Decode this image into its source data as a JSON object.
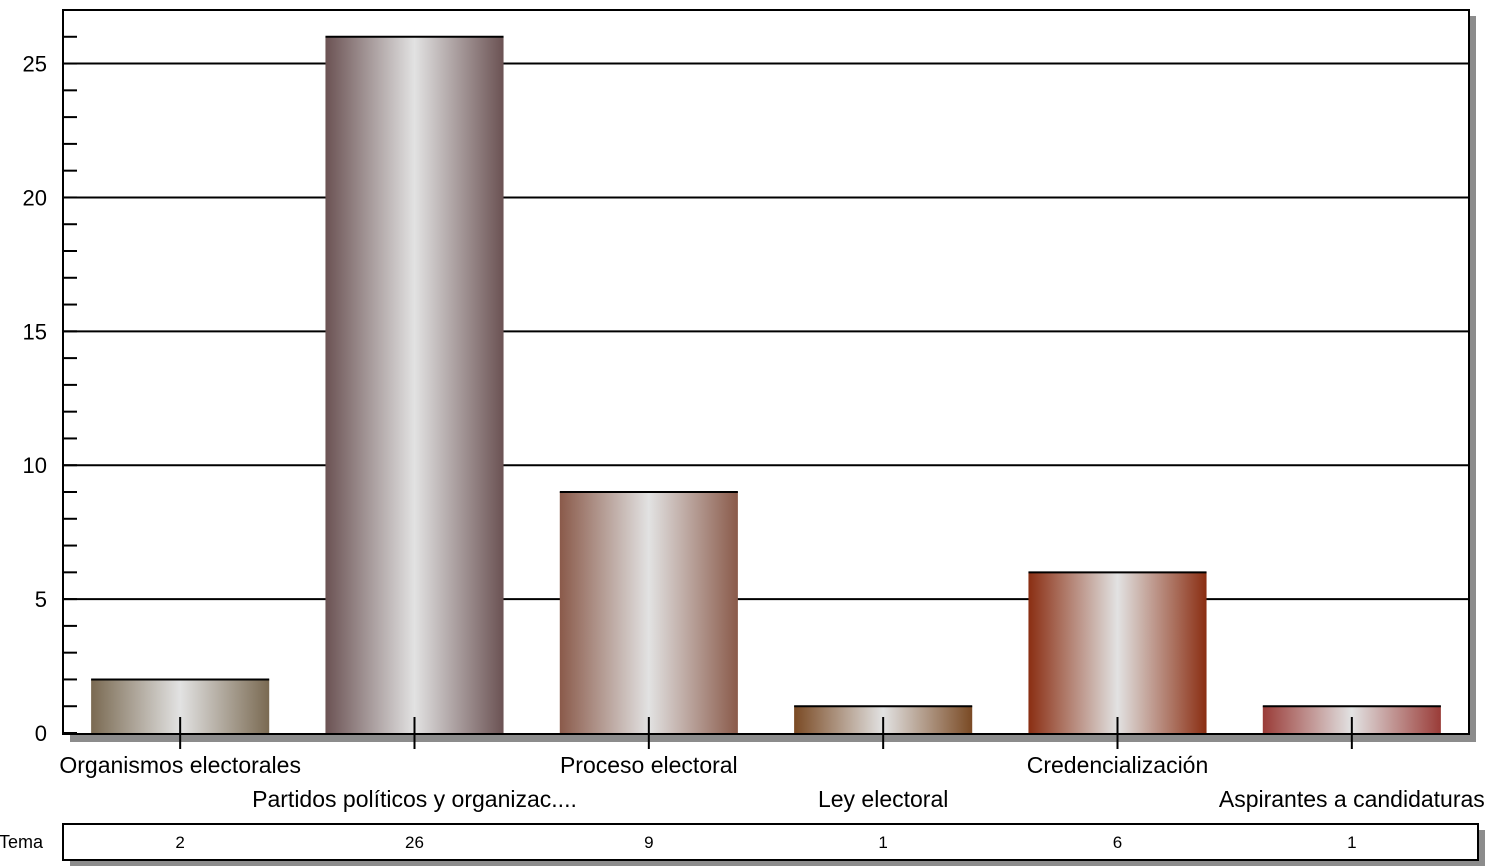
{
  "chart_data": {
    "type": "bar",
    "title": "",
    "xlabel": "",
    "ylabel": "",
    "categories": [
      "Organismos electorales",
      "Partidos políticos y organizac....",
      "Proceso electoral",
      "Ley electoral",
      "Credencialización",
      "Aspirantes a candidaturas"
    ],
    "series": [
      {
        "name": "Tema",
        "values": [
          2,
          26,
          9,
          1,
          6,
          1
        ]
      }
    ],
    "ylim": [
      0,
      27
    ],
    "yticks": [
      0,
      5,
      10,
      15,
      20,
      25
    ],
    "grid": true,
    "legend": "none",
    "data_table": {
      "row_label": "Tema",
      "cells": [
        "2",
        "26",
        "9",
        "1",
        "6",
        "1"
      ]
    },
    "colors": [
      "#7a6a52",
      "#6b5253",
      "#8a5a4a",
      "#7a4a24",
      "#8a2e12",
      "#9a3c38"
    ]
  }
}
